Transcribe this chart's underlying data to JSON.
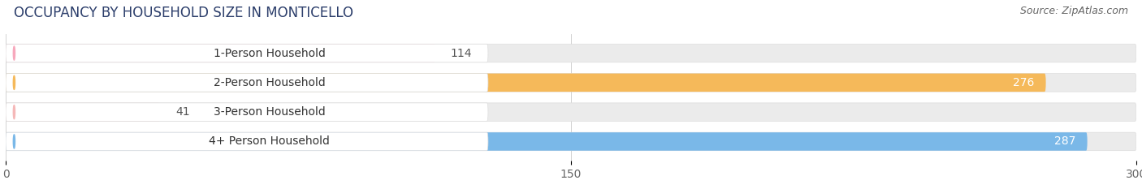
{
  "title": "OCCUPANCY BY HOUSEHOLD SIZE IN MONTICELLO",
  "source": "Source: ZipAtlas.com",
  "categories": [
    "1-Person Household",
    "2-Person Household",
    "3-Person Household",
    "4+ Person Household"
  ],
  "values": [
    114,
    276,
    41,
    287
  ],
  "colors": [
    "#f7a8bc",
    "#f5b95a",
    "#f5b8b8",
    "#7ab8e8"
  ],
  "xlim": [
    0,
    300
  ],
  "xticks": [
    0,
    150,
    300
  ],
  "bar_height": 0.62,
  "background_color": "#ffffff",
  "bar_bg_color": "#ebebeb",
  "bar_border_color": "#dddddd",
  "label_bg_color": "#ffffff",
  "title_fontsize": 12,
  "source_fontsize": 9,
  "tick_fontsize": 10,
  "label_fontsize": 10,
  "value_fontsize": 10
}
